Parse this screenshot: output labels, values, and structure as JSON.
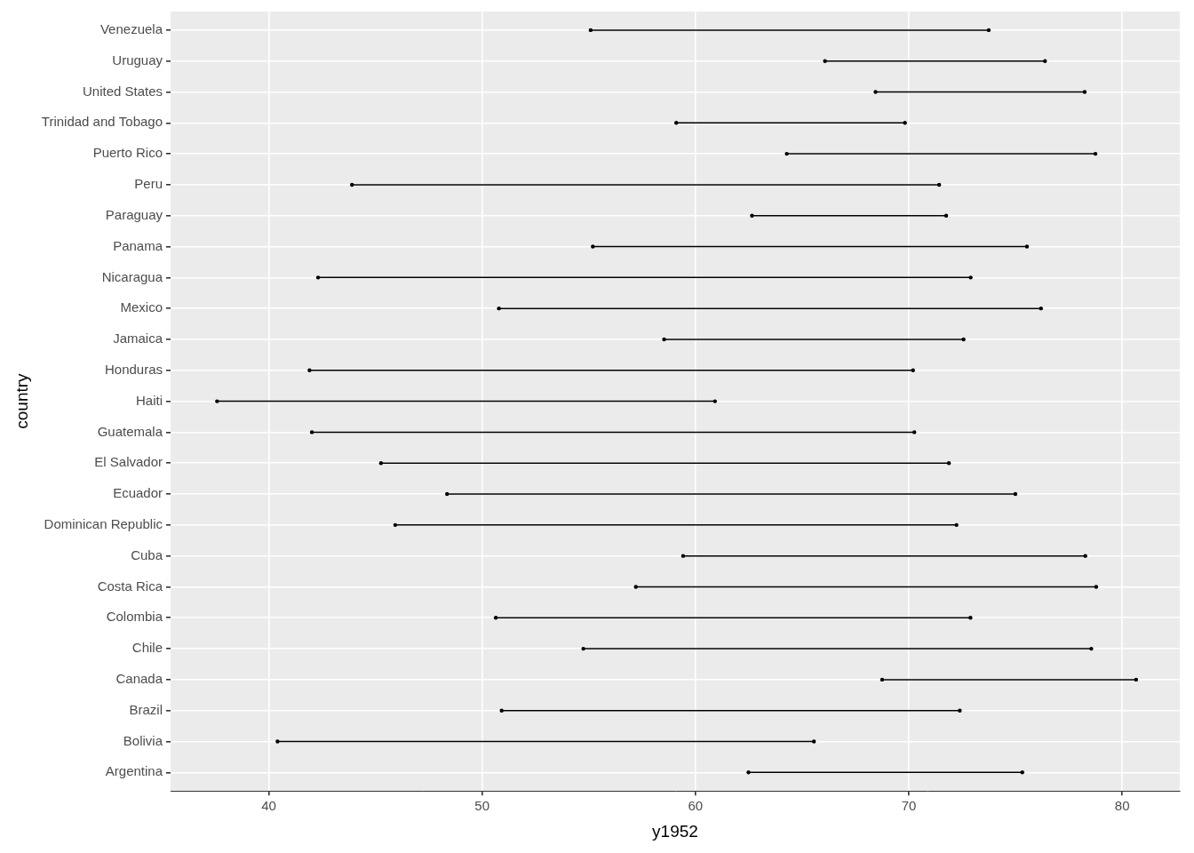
{
  "chart_data": {
    "type": "dumbbell",
    "orientation": "horizontal",
    "x_label": "y1952",
    "y_label": "country",
    "categories": [
      "Argentina",
      "Bolivia",
      "Brazil",
      "Canada",
      "Chile",
      "Colombia",
      "Costa Rica",
      "Cuba",
      "Dominican Republic",
      "Ecuador",
      "El Salvador",
      "Guatemala",
      "Haiti",
      "Honduras",
      "Jamaica",
      "Mexico",
      "Nicaragua",
      "Panama",
      "Paraguay",
      "Peru",
      "Puerto Rico",
      "Trinidad and Tobago",
      "United States",
      "Uruguay",
      "Venezuela"
    ],
    "values": [
      [
        62.485,
        75.32
      ],
      [
        40.414,
        65.554
      ],
      [
        50.917,
        72.39
      ],
      [
        68.75,
        80.653
      ],
      [
        54.745,
        78.553
      ],
      [
        50.643,
        72.889
      ],
      [
        57.206,
        78.782
      ],
      [
        59.421,
        78.273
      ],
      [
        45.928,
        72.235
      ],
      [
        48.357,
        74.994
      ],
      [
        45.262,
        71.878
      ],
      [
        42.023,
        70.259
      ],
      [
        37.579,
        60.916
      ],
      [
        41.912,
        70.198
      ],
      [
        58.53,
        72.567
      ],
      [
        50.789,
        76.195
      ],
      [
        42.314,
        72.899
      ],
      [
        55.191,
        75.537
      ],
      [
        62.649,
        71.752
      ],
      [
        43.902,
        71.421
      ],
      [
        64.28,
        78.746
      ],
      [
        59.1,
        69.819
      ],
      [
        68.44,
        78.242
      ],
      [
        66.071,
        76.384
      ],
      [
        55.088,
        73.747
      ]
    ],
    "color": "#000000",
    "marker": "circle",
    "line_style": "solid",
    "xlim": [
      35.4,
      82.7
    ],
    "xticks": [
      40,
      50,
      60,
      70,
      80
    ],
    "grid": true
  }
}
